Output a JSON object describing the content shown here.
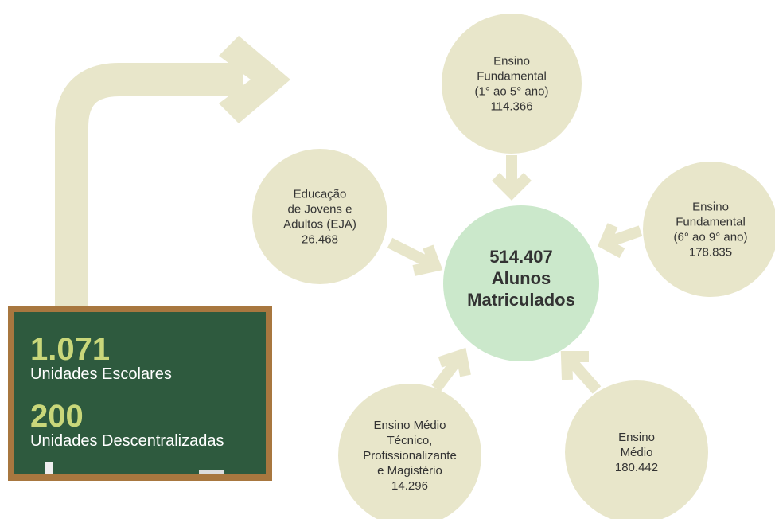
{
  "board": {
    "schools_value": "1.071",
    "schools_label": "Unidades Escolares",
    "decentralized_value": "200",
    "decentralized_label": "Unidades Descentralizadas"
  },
  "center": {
    "value": "514.407",
    "lines": [
      "Alunos",
      "Matriculados"
    ]
  },
  "nodes": [
    {
      "lines": [
        "Ensino",
        "Fundamental",
        "(1° ao 5° ano)"
      ],
      "value": "114.366"
    },
    {
      "lines": [
        "Educação",
        "de Jovens e",
        "Adultos (EJA)"
      ],
      "value": "26.468"
    },
    {
      "lines": [
        "Ensino",
        "Fundamental",
        "(6° ao 9° ano)"
      ],
      "value": "178.835"
    },
    {
      "lines": [
        "Ensino Médio",
        "Técnico,",
        "Profissionalizante",
        "e Magistério"
      ],
      "value": "14.296"
    },
    {
      "lines": [
        "Ensino",
        "Médio"
      ],
      "value": "180.442"
    }
  ]
}
